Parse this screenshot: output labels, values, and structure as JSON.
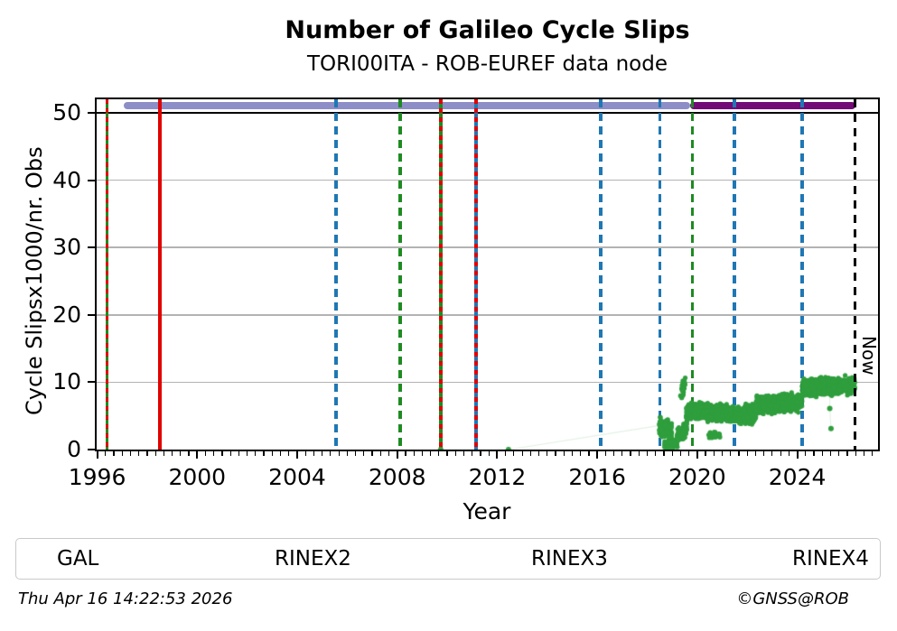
{
  "page": {
    "title": "Number of Galileo Cycle Slips",
    "subtitle": "TORI00ITA - ROB-EUREF data node"
  },
  "footer": {
    "timestamp": "Thu Apr 16 14:22:53 2026",
    "credit": "©GNSS@ROB"
  },
  "legend": {
    "items": [
      {
        "label": "GAL",
        "color_key": "gal"
      },
      {
        "label": "RINEX2",
        "color_key": "rinex2"
      },
      {
        "label": "RINEX3",
        "color_key": "rinex3"
      },
      {
        "label": "RINEX4",
        "color_key": "rinex4"
      }
    ]
  },
  "colors": {
    "gal": "#2f9e3d",
    "rinex2": "#8d8ec7",
    "rinex3": "#720b76",
    "rinex4": "#1e0021",
    "blue": "#1f77b4",
    "green": "#1e8b22",
    "red": "#e00000",
    "grid": "#b3b3b3",
    "black": "#000000",
    "faint": "rgba(47,158,61,0.14)"
  },
  "chart_data": {
    "type": "scatter",
    "title": "Number of Galileo Cycle Slips",
    "subtitle": "TORI00ITA - ROB-EUREF data node",
    "xlabel": "Year",
    "ylabel": "Cycle Slipsx1000/nr. Obs",
    "xlim": [
      1995.98,
      2027.23
    ],
    "ylim": [
      0,
      52
    ],
    "x_ticks": [
      1996,
      2000,
      2004,
      2008,
      2012,
      2016,
      2020,
      2024
    ],
    "x_minor_step_years": 0.33333,
    "y_ticks": [
      0,
      10,
      20,
      30,
      40,
      50
    ],
    "grid_y": [
      10,
      20,
      30,
      40
    ],
    "hline_black_y": 50,
    "legend_position": "bottom",
    "rinex_bars": [
      {
        "name": "RINEX2",
        "start": 1997.06,
        "end": 2019.72,
        "y": 51,
        "color_key": "rinex2"
      },
      {
        "name": "RINEX3",
        "start": 2019.72,
        "end": 2026.33,
        "y": 51,
        "color_key": "rinex3"
      }
    ],
    "event_lines": [
      {
        "year": 1996.4,
        "style": "solid",
        "color_key": "green",
        "red_overlay": true
      },
      {
        "year": 1998.51,
        "style": "solid",
        "color_key": "red",
        "red_overlay": false
      },
      {
        "year": 2005.55,
        "style": "dashed",
        "color_key": "blue",
        "red_overlay": false
      },
      {
        "year": 2008.12,
        "style": "dashed",
        "color_key": "green",
        "red_overlay": false
      },
      {
        "year": 2009.74,
        "style": "solid",
        "color_key": "green",
        "red_overlay": true
      },
      {
        "year": 2011.15,
        "style": "solid",
        "color_key": "blue",
        "red_overlay": true
      },
      {
        "year": 2016.14,
        "style": "dashed",
        "color_key": "blue",
        "red_overlay": false
      },
      {
        "year": 2018.5,
        "style": "dashed",
        "color_key": "blue",
        "red_overlay": false
      },
      {
        "year": 2019.8,
        "style": "dashed",
        "color_key": "green",
        "red_overlay": false
      },
      {
        "year": 2021.48,
        "style": "dashed",
        "color_key": "blue",
        "red_overlay": false
      },
      {
        "year": 2024.19,
        "style": "dashed",
        "color_key": "blue",
        "red_overlay": false
      }
    ],
    "now": {
      "year": 2026.3,
      "label": "Now"
    },
    "series": [
      {
        "name": "GAL",
        "color_key": "gal",
        "single_points": [
          [
            2009.74,
            0
          ],
          [
            2012.45,
            0
          ],
          [
            2025.3,
            6.1
          ],
          [
            2025.35,
            3.1
          ]
        ],
        "clusters": [
          {
            "x0": 2018.48,
            "x1": 2018.98,
            "y0": 3.4,
            "y1": 2.9,
            "spread": 1.7,
            "n": 150
          },
          {
            "x0": 2018.68,
            "x1": 2019.22,
            "y0": 0.6,
            "y1": 0.9,
            "spread": 0.7,
            "n": 100
          },
          {
            "x0": 2019.18,
            "x1": 2019.58,
            "y0": 2.0,
            "y1": 3.0,
            "spread": 1.3,
            "n": 80
          },
          {
            "x0": 2019.32,
            "x1": 2019.52,
            "y0": 8.8,
            "y1": 9.6,
            "spread": 1.5,
            "n": 22
          },
          {
            "x0": 2019.55,
            "x1": 2019.8,
            "y0": 5.2,
            "y1": 5.8,
            "spread": 1.5,
            "n": 80
          },
          {
            "x0": 2019.8,
            "x1": 2021.5,
            "y0": 5.7,
            "y1": 5.3,
            "spread": 1.4,
            "n": 640
          },
          {
            "x0": 2020.45,
            "x1": 2020.95,
            "y0": 2.2,
            "y1": 2.2,
            "spread": 0.7,
            "n": 18
          },
          {
            "x0": 2021.5,
            "x1": 2022.35,
            "y0": 5.0,
            "y1": 5.3,
            "spread": 1.5,
            "n": 320
          },
          {
            "x0": 2022.35,
            "x1": 2024.19,
            "y0": 6.6,
            "y1": 7.1,
            "spread": 1.4,
            "n": 700
          },
          {
            "x0": 2024.19,
            "x1": 2026.3,
            "y0": 9.2,
            "y1": 9.5,
            "spread": 1.4,
            "n": 780
          }
        ],
        "faint_paths": [
          [
            [
              2009.74,
              0
            ],
            [
              2012.45,
              0
            ],
            [
              2018.55,
              3.6
            ]
          ],
          [
            [
              2025.3,
              8.8
            ],
            [
              2025.3,
              6.1
            ],
            [
              2025.35,
              3.1
            ]
          ]
        ]
      }
    ]
  }
}
